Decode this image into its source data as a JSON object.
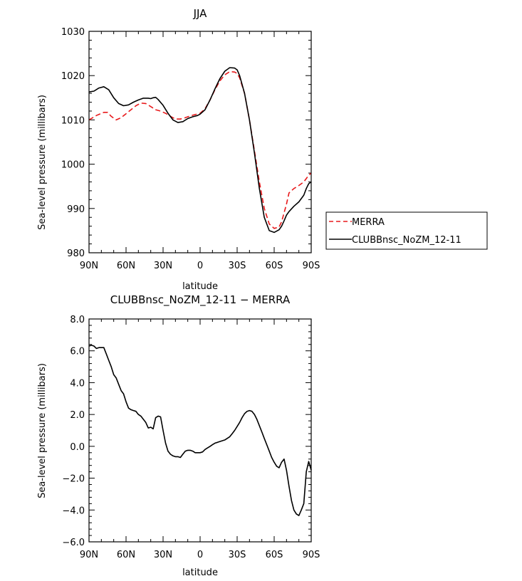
{
  "colors": {
    "merra": "#e8191b",
    "clubb": "#000000",
    "frame": "#000000"
  },
  "chart_data": [
    {
      "type": "line",
      "title": "JJA",
      "xlabel": "latitude",
      "ylabel": "Sea-level pressure (millibars)",
      "xlim": [
        90,
        -90
      ],
      "ylim": [
        980,
        1030
      ],
      "xticks": [
        90,
        60,
        30,
        0,
        -30,
        -60,
        -90
      ],
      "xtick_labels": [
        "90N",
        "60N",
        "30N",
        "0",
        "30S",
        "60S",
        "90S"
      ],
      "yticks": [
        980,
        990,
        1000,
        1010,
        1020,
        1030
      ],
      "ytick_labels": [
        "980",
        "990",
        "1000",
        "1010",
        "1020",
        "1030"
      ],
      "grid": false,
      "legend_position": "right",
      "series": [
        {
          "name": "MERRA",
          "style": "dashed",
          "color": "#e8191b",
          "x": [
            90,
            84,
            78,
            75,
            72,
            68,
            64,
            60,
            56,
            52,
            48,
            44,
            40,
            36,
            32,
            28,
            24,
            20,
            16,
            12,
            8,
            4,
            0,
            -4,
            -8,
            -12,
            -16,
            -20,
            -24,
            -28,
            -30,
            -32,
            -36,
            -40,
            -44,
            -48,
            -52,
            -56,
            -60,
            -64,
            -66,
            -68,
            -70,
            -72,
            -76,
            -80,
            -84,
            -88,
            -90
          ],
          "y": [
            1010,
            1011,
            1011.7,
            1011.7,
            1010.8,
            1010.0,
            1010.5,
            1011.4,
            1012.3,
            1013.2,
            1013.8,
            1013.7,
            1013.0,
            1012.3,
            1012.0,
            1011.5,
            1010.8,
            1010.2,
            1010.2,
            1010.5,
            1010.9,
            1011.2,
            1011.5,
            1012.5,
            1014.5,
            1016.8,
            1018.8,
            1020.2,
            1020.9,
            1020.8,
            1020.5,
            1019.5,
            1016.0,
            1010.0,
            1003.0,
            996.0,
            990.0,
            986.5,
            985.5,
            985.8,
            987.0,
            989.0,
            991.0,
            993.5,
            994.5,
            995.2,
            996.0,
            997.5,
            998.0
          ]
        },
        {
          "name": "CLUBBnsc_NoZM_12-11",
          "style": "solid",
          "color": "#000000",
          "x": [
            90,
            86,
            82,
            78,
            74,
            70,
            66,
            62,
            58,
            54,
            50,
            46,
            42,
            40,
            38,
            36,
            34,
            30,
            26,
            22,
            18,
            14,
            10,
            6,
            2,
            0,
            -4,
            -8,
            -12,
            -16,
            -20,
            -24,
            -28,
            -30,
            -32,
            -36,
            -40,
            -44,
            -48,
            -52,
            -56,
            -60,
            -64,
            -66,
            -68,
            -70,
            -72,
            -76,
            -80,
            -84,
            -86,
            -88,
            -90
          ],
          "y": [
            1016.3,
            1016.5,
            1017.2,
            1017.5,
            1016.8,
            1015.0,
            1013.7,
            1013.2,
            1013.4,
            1014.0,
            1014.5,
            1014.9,
            1014.9,
            1014.8,
            1015.0,
            1015.1,
            1014.6,
            1013.3,
            1011.5,
            1010.0,
            1009.4,
            1009.6,
            1010.3,
            1010.7,
            1011.0,
            1011.3,
            1012.3,
            1014.5,
            1017.0,
            1019.3,
            1021.0,
            1021.8,
            1021.7,
            1021.3,
            1020.0,
            1016.0,
            1010.0,
            1002.5,
            994.5,
            988.0,
            985.0,
            984.6,
            985.2,
            986.0,
            987.2,
            988.5,
            989.3,
            990.5,
            991.5,
            993.0,
            994.5,
            995.6,
            996.0
          ]
        }
      ]
    },
    {
      "type": "line",
      "title": "CLUBBnsc_NoZM_12-11 − MERRA",
      "xlabel": "latitude",
      "ylabel": "Sea-level pressure (millibars)",
      "xlim": [
        90,
        -90
      ],
      "ylim": [
        -6,
        8
      ],
      "xticks": [
        90,
        60,
        30,
        0,
        -30,
        -60,
        -90
      ],
      "xtick_labels": [
        "90N",
        "60N",
        "30N",
        "0",
        "30S",
        "60S",
        "90S"
      ],
      "yticks": [
        -6,
        -4,
        -2,
        0,
        2,
        4,
        6,
        8
      ],
      "ytick_labels": [
        "−6.0",
        "−4.0",
        "−2.0",
        "0.0",
        "2.0",
        "4.0",
        "6.0",
        "8.0"
      ],
      "grid": false,
      "series": [
        {
          "style": "solid",
          "color": "#000000",
          "x": [
            90,
            88,
            86,
            84,
            82,
            80,
            78,
            76,
            74,
            72,
            70,
            68,
            66,
            64,
            62,
            60,
            58,
            56,
            54,
            52,
            50,
            48,
            46,
            44,
            42,
            40,
            38,
            36,
            34,
            32,
            30,
            28,
            26,
            24,
            22,
            20,
            18,
            16,
            14,
            12,
            10,
            8,
            6,
            4,
            2,
            0,
            -2,
            -4,
            -6,
            -8,
            -10,
            -12,
            -14,
            -16,
            -18,
            -20,
            -22,
            -24,
            -26,
            -28,
            -30,
            -32,
            -34,
            -36,
            -38,
            -40,
            -42,
            -44,
            -46,
            -48,
            -50,
            -52,
            -54,
            -56,
            -58,
            -60,
            -62,
            -64,
            -66,
            -68,
            -70,
            -72,
            -74,
            -76,
            -78,
            -80,
            -82,
            -84,
            -86,
            -88,
            -90
          ],
          "y": [
            6.3,
            6.35,
            6.3,
            6.15,
            6.2,
            6.2,
            6.2,
            5.8,
            5.4,
            5.0,
            4.5,
            4.3,
            3.9,
            3.5,
            3.3,
            2.8,
            2.4,
            2.3,
            2.25,
            2.2,
            2.0,
            1.9,
            1.7,
            1.5,
            1.15,
            1.2,
            1.1,
            1.8,
            1.9,
            1.85,
            1.0,
            0.2,
            -0.3,
            -0.5,
            -0.6,
            -0.65,
            -0.65,
            -0.7,
            -0.5,
            -0.3,
            -0.25,
            -0.25,
            -0.3,
            -0.4,
            -0.4,
            -0.4,
            -0.35,
            -0.2,
            -0.1,
            0.0,
            0.1,
            0.2,
            0.25,
            0.3,
            0.35,
            0.4,
            0.5,
            0.6,
            0.8,
            1.0,
            1.25,
            1.5,
            1.8,
            2.05,
            2.2,
            2.25,
            2.2,
            2.0,
            1.7,
            1.3,
            0.9,
            0.5,
            0.1,
            -0.3,
            -0.7,
            -1.0,
            -1.25,
            -1.35,
            -1.0,
            -0.8,
            -1.5,
            -2.5,
            -3.4,
            -4.0,
            -4.25,
            -4.35,
            -4.0,
            -3.6,
            -1.6,
            -0.95,
            -1.5
          ]
        }
      ]
    }
  ]
}
